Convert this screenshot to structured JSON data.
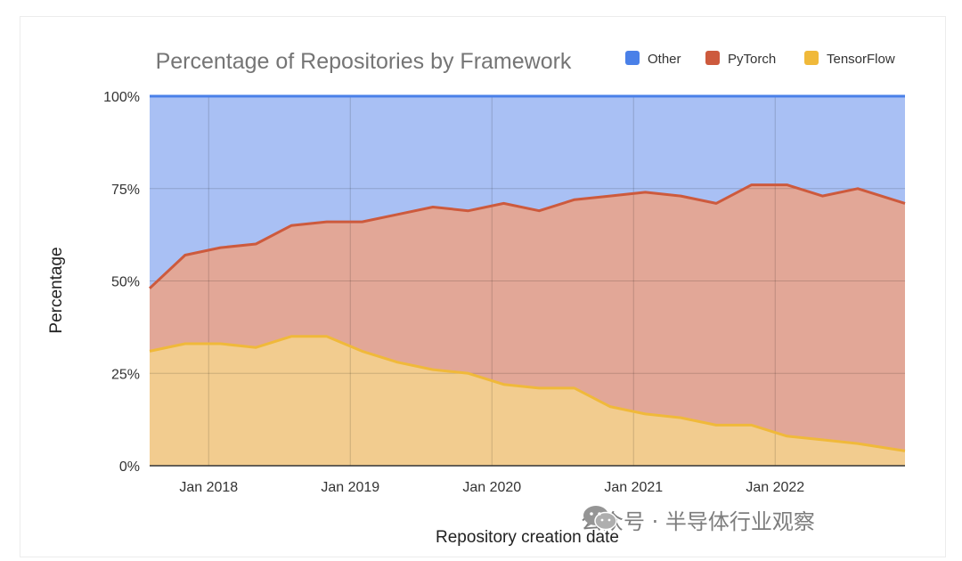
{
  "chart_data": {
    "type": "area",
    "stacked": "percent",
    "title": "Percentage of Repositories by Framework",
    "xlabel": "Repository creation date",
    "ylabel": "Percentage",
    "ylim": [
      0,
      100
    ],
    "y_ticks": [
      "0%",
      "25%",
      "50%",
      "75%",
      "100%"
    ],
    "x_range": [
      "2017-08",
      "2022-12"
    ],
    "x_ticks": [
      {
        "date": "2018-01",
        "label": "Jan 2018"
      },
      {
        "date": "2019-01",
        "label": "Jan 2019"
      },
      {
        "date": "2020-01",
        "label": "Jan 2020"
      },
      {
        "date": "2021-01",
        "label": "Jan 2021"
      },
      {
        "date": "2022-01",
        "label": "Jan 2022"
      }
    ],
    "grid": true,
    "legend_position": "top-right",
    "x": [
      "2017-08",
      "2017-11",
      "2018-02",
      "2018-05",
      "2018-08",
      "2018-11",
      "2019-02",
      "2019-05",
      "2019-08",
      "2019-11",
      "2020-02",
      "2020-05",
      "2020-08",
      "2020-11",
      "2021-02",
      "2021-05",
      "2021-08",
      "2021-11",
      "2022-02",
      "2022-05",
      "2022-08",
      "2022-12"
    ],
    "series": [
      {
        "name": "TensorFlow",
        "color": "#f0b93a",
        "fill": "#f2cc8f",
        "values": [
          31,
          33,
          33,
          32,
          35,
          35,
          31,
          28,
          26,
          25,
          22,
          21,
          21,
          16,
          14,
          13,
          11,
          11,
          8,
          7,
          6,
          4
        ]
      },
      {
        "name": "PyTorch",
        "color": "#cd5a3d",
        "fill": "#e2a797",
        "values": [
          17,
          24,
          26,
          28,
          30,
          31,
          35,
          40,
          44,
          44,
          49,
          48,
          51,
          57,
          60,
          60,
          60,
          65,
          68,
          66,
          69,
          67
        ]
      },
      {
        "name": "Other",
        "color": "#4a80e8",
        "fill": "#a9c0f4",
        "values": [
          52,
          43,
          41,
          40,
          35,
          34,
          34,
          32,
          30,
          31,
          29,
          31,
          28,
          27,
          26,
          27,
          29,
          24,
          24,
          27,
          25,
          29
        ]
      }
    ]
  },
  "watermark": {
    "icon": "wechat-icon",
    "text": "公众号 · 半导体行业观察"
  }
}
